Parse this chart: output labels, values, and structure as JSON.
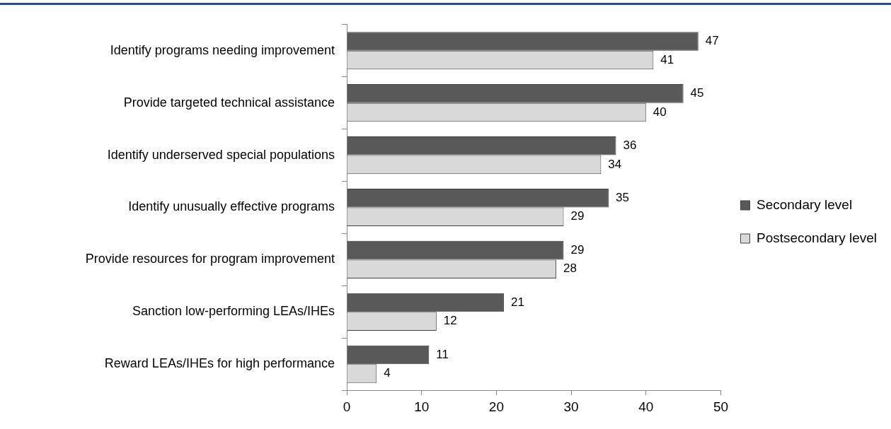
{
  "chart_data": {
    "type": "bar",
    "orientation": "horizontal",
    "categories": [
      "Identify programs needing improvement",
      "Provide targeted technical assistance",
      "Identify underserved special populations",
      "Identify unusually effective programs",
      "Provide resources for program improvement",
      "Sanction low-performing LEAs/IHEs",
      "Reward LEAs/IHEs for high performance"
    ],
    "series": [
      {
        "name": "Secondary level",
        "color": "#595959",
        "values": [
          47,
          45,
          36,
          35,
          29,
          21,
          11
        ]
      },
      {
        "name": "Postsecondary level",
        "color": "#d9d9d9",
        "values": [
          41,
          40,
          34,
          29,
          28,
          12,
          4
        ]
      }
    ],
    "xlim": [
      0,
      50
    ],
    "xticks": [
      0,
      10,
      20,
      30,
      40,
      50
    ],
    "grid": false,
    "legend": "right",
    "data_labels": true
  }
}
